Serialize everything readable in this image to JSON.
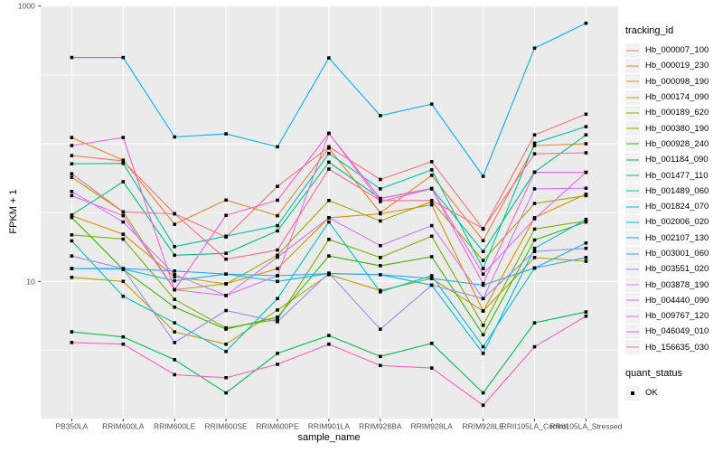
{
  "figure": {
    "background": "#FFFFFF",
    "panel_background": "#EBEBEB",
    "gridline_color": "#FFFFFF",
    "tick_label_color": "#4D4D4D",
    "tick_mark_color": "#333333",
    "point_color": "#000000"
  },
  "chart_data": {
    "type": "line",
    "x_axis": {
      "label": "sample_name",
      "categories": [
        "PB350LA",
        "RRIM600LA",
        "RRIM600LE",
        "RRIM600SE",
        "RRIM600PE",
        "RRIM901LA",
        "RRIM928BA",
        "RRIM928LA",
        "RRIM928LE",
        "RRII105LA_Control",
        "RRII105LA_Stressed"
      ]
    },
    "y_axis": {
      "label": "FPKM + 1",
      "scale": "log10",
      "ticks": [
        {
          "label": "1000",
          "value": 1000
        },
        {
          "label": "10",
          "value": 10
        }
      ],
      "major_gridlines": [
        10,
        100,
        1000
      ],
      "minor_gridlines": [
        3.16,
        31.6,
        316
      ],
      "range_approx": [
        1,
        1070
      ]
    },
    "legend": {
      "series_title": "tracking_id",
      "status_title": "quant_status",
      "status_items": [
        {
          "label": "OK",
          "marker": "black-square"
        }
      ]
    },
    "series": [
      {
        "name": "Hb_000007_100",
        "color": "#F8766D",
        "values": [
          82,
          75,
          31,
          21,
          49,
          95,
          55,
          74,
          24,
          116,
          164
        ]
      },
      {
        "name": "Hb_000019_230",
        "color": "#EA8331",
        "values": [
          111,
          76,
          26,
          39,
          30,
          93,
          31.5,
          59,
          19.8,
          97,
          100
        ]
      },
      {
        "name": "Hb_000098_190",
        "color": "#D89000",
        "values": [
          30,
          22,
          10.8,
          9.6,
          12.4,
          29,
          31,
          36,
          6.1,
          29,
          43
        ]
      },
      {
        "name": "Hb_000174_090",
        "color": "#C09B00",
        "values": [
          10.7,
          10,
          4.3,
          3.5,
          6.2,
          11.2,
          8.6,
          10.5,
          6.1,
          14.9,
          14
        ]
      },
      {
        "name": "Hb_000189_620",
        "color": "#A3A500",
        "values": [
          57,
          32,
          8.7,
          9.6,
          15.5,
          38.7,
          27.5,
          38,
          14.2,
          36.8,
          42
        ]
      },
      {
        "name": "Hb_000380_190",
        "color": "#7CAE00",
        "values": [
          21.8,
          20.3,
          7.4,
          4.6,
          5.3,
          20.2,
          14.9,
          21.3,
          4.8,
          24,
          27.5
        ]
      },
      {
        "name": "Hb_000928_240",
        "color": "#39B600",
        "values": [
          29.1,
          12.2,
          6.5,
          4.5,
          5.5,
          15.3,
          13,
          15.1,
          4.1,
          20,
          27
        ]
      },
      {
        "name": "Hb_001184_090",
        "color": "#00BB4E",
        "values": [
          4.3,
          3.95,
          2.7,
          1.55,
          3.0,
          4.05,
          2.85,
          3.55,
          1.55,
          5.0,
          6.0
        ]
      },
      {
        "name": "Hb_001477_110",
        "color": "#00BF7D",
        "values": [
          30.4,
          53,
          15.5,
          16,
          23.3,
          73.5,
          40,
          47.4,
          16.5,
          62.3,
          116
        ]
      },
      {
        "name": "Hb_001489_060",
        "color": "#00C1A3",
        "values": [
          71.5,
          72,
          17.9,
          21.3,
          25.4,
          85,
          47,
          64.6,
          12.4,
          101,
          133
        ]
      },
      {
        "name": "Hb_001824_070",
        "color": "#00BFC4",
        "values": [
          19.7,
          7.8,
          5.0,
          3.1,
          7.5,
          27,
          8.4,
          11,
          3.35,
          12.5,
          19
        ]
      },
      {
        "name": "Hb_002006_020",
        "color": "#00BAE0",
        "values": [
          12.4,
          12.3,
          10.1,
          11.3,
          10,
          11.4,
          11.2,
          9.4,
          3.0,
          17.4,
          28.2
        ]
      },
      {
        "name": "Hb_002107_130",
        "color": "#00B0F6",
        "values": [
          423,
          423,
          112,
          118,
          95,
          420,
          160,
          194,
          58,
          494,
          750
        ]
      },
      {
        "name": "Hb_003001_060",
        "color": "#35A2FF",
        "values": [
          12.4,
          12.4,
          11.9,
          11.3,
          11,
          11.4,
          11.2,
          10.5,
          9.4,
          12.5,
          14.9
        ]
      },
      {
        "name": "Hb_003551_020",
        "color": "#9590FF",
        "values": [
          15.3,
          12.4,
          3.6,
          6.15,
          5.1,
          11.5,
          4.5,
          9.4,
          7.5,
          16.5,
          17.4
        ]
      },
      {
        "name": "Hb_003878_190",
        "color": "#C77CFF",
        "values": [
          45,
          27,
          11.2,
          7.9,
          15,
          29,
          18.2,
          25.4,
          7.5,
          47,
          47.5
        ]
      },
      {
        "name": "Hb_004440_090",
        "color": "#E76BF3",
        "values": [
          42,
          30,
          8.7,
          7.9,
          11,
          119,
          38,
          47,
          11.3,
          28.5,
          62
        ]
      },
      {
        "name": "Hb_009767_120",
        "color": "#FA62DB",
        "values": [
          97,
          111,
          8.7,
          30.2,
          38.9,
          119,
          40,
          47,
          9.65,
          62,
          62
        ]
      },
      {
        "name": "Hb_046049_010",
        "color": "#FF62BC",
        "values": [
          3.6,
          3.5,
          2.1,
          2.0,
          2.5,
          3.5,
          2.45,
          2.35,
          1.26,
          3.35,
          5.6
        ]
      },
      {
        "name": "Hb_156635_030",
        "color": "#FF6A98",
        "values": [
          60.5,
          32,
          31,
          14.5,
          16.9,
          65.5,
          38.7,
          38.7,
          24.2,
          84.4,
          86
        ]
      }
    ]
  }
}
